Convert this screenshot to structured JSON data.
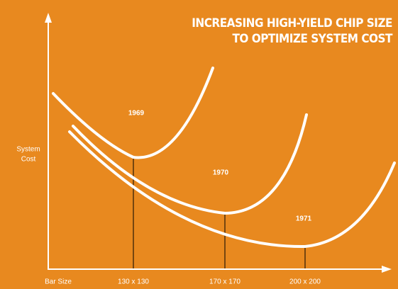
{
  "title": [
    "INCREASING HIGH-YIELD CHIP SIZE",
    "TO OPTIMIZE SYSTEM COST"
  ],
  "y_axis_label": [
    "System",
    "Cost"
  ],
  "x_axis_label": "Bar Size",
  "x_labels": [
    "130 x 130",
    "170 x 170",
    "200 x 200"
  ],
  "curves": [
    {
      "label": "1969"
    },
    {
      "label": "1970"
    },
    {
      "label": "1971"
    }
  ]
}
